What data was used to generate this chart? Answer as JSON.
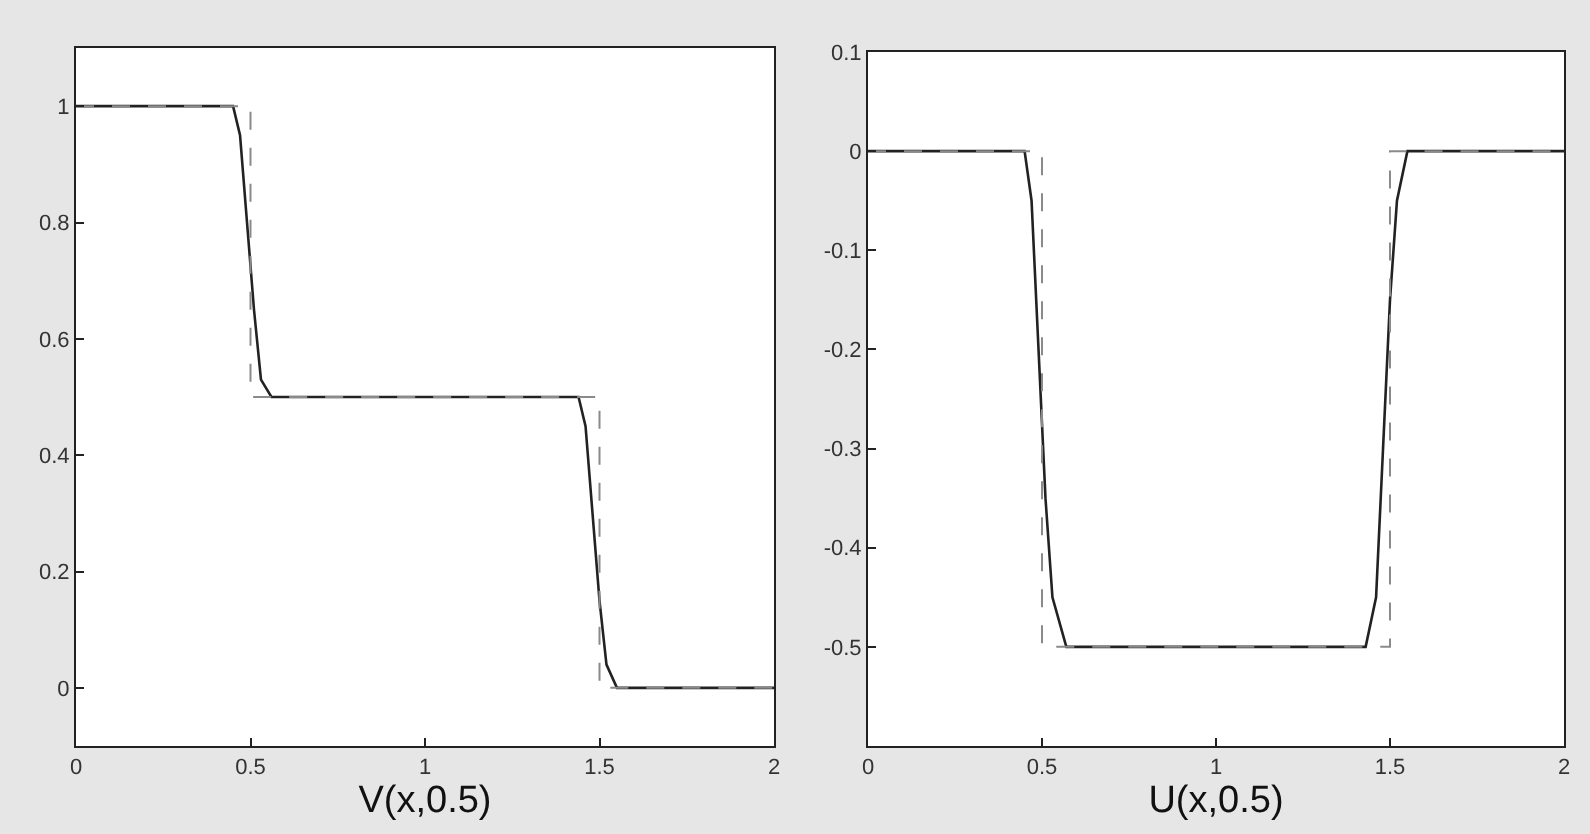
{
  "chart_data": [
    {
      "type": "line",
      "xlabel": "V(x,0.5)",
      "xlim": [
        0,
        2
      ],
      "xticks": [
        0,
        0.5,
        1,
        1.5,
        2
      ],
      "ylim": [
        -0.1,
        1.1
      ],
      "yticks": [
        0,
        0.2,
        0.4,
        0.6,
        0.8,
        1
      ],
      "series": [
        {
          "color": "#222222",
          "line_style": "solid",
          "x": [
            0,
            0.45,
            0.47,
            0.49,
            0.51,
            0.53,
            0.56,
            1.44,
            1.46,
            1.48,
            1.5,
            1.52,
            1.55,
            2
          ],
          "values": [
            1,
            1,
            0.95,
            0.8,
            0.65,
            0.53,
            0.5,
            0.5,
            0.45,
            0.3,
            0.15,
            0.04,
            0,
            0
          ]
        },
        {
          "color": "#8a8a8a",
          "line_style": "dashed",
          "x": [
            0,
            0.5,
            0.5,
            1.5,
            1.5,
            2
          ],
          "values": [
            1,
            1,
            0.5,
            0.5,
            0,
            0
          ]
        }
      ]
    },
    {
      "type": "line",
      "xlabel": "U(x,0.5)",
      "xlim": [
        0,
        2
      ],
      "xticks": [
        0,
        0.5,
        1,
        1.5,
        2
      ],
      "ylim": [
        -0.6,
        0.1
      ],
      "yticks": [
        -0.5,
        -0.4,
        -0.3,
        -0.2,
        -0.1,
        0,
        0.1
      ],
      "series": [
        {
          "color": "#222222",
          "line_style": "solid",
          "x": [
            0,
            0.45,
            0.47,
            0.49,
            0.51,
            0.53,
            0.57,
            1.43,
            1.46,
            1.48,
            1.5,
            1.52,
            1.55,
            2
          ],
          "values": [
            0,
            0,
            -0.05,
            -0.2,
            -0.35,
            -0.45,
            -0.5,
            -0.5,
            -0.45,
            -0.3,
            -0.15,
            -0.05,
            0,
            0
          ]
        },
        {
          "color": "#8a8a8a",
          "line_style": "dashed",
          "x": [
            0,
            0.5,
            0.5,
            1.5,
            1.5,
            2
          ],
          "values": [
            0,
            0,
            -0.5,
            -0.5,
            0,
            0
          ]
        }
      ]
    }
  ]
}
